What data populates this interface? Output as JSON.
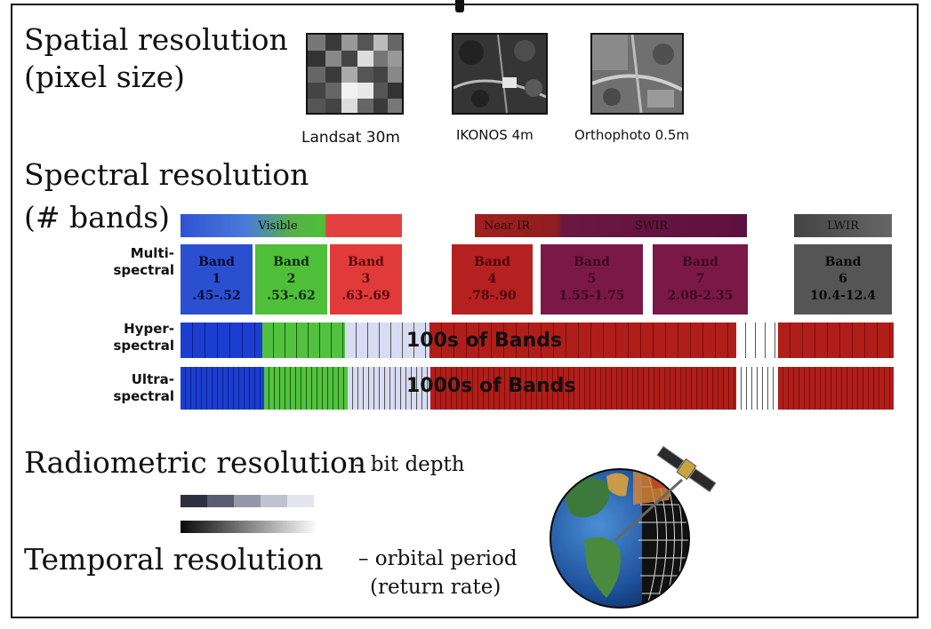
{
  "spatial": {
    "heading1": "Spatial resolution",
    "heading2": "(pixel size)",
    "images": [
      {
        "caption": "Landsat 30m"
      },
      {
        "caption": "IKONOS 4m"
      },
      {
        "caption": "Orthophoto 0.5m"
      }
    ]
  },
  "spectral": {
    "heading1": "Spectral resolution",
    "heading2": "(# bands)",
    "regions": [
      {
        "label": "Visible",
        "color": "#4a7bd8"
      },
      {
        "label": "Near IR",
        "color": "#8e1e1e"
      },
      {
        "label": "SWIR",
        "color": "#6a1840"
      },
      {
        "label": "LWIR",
        "color": "#555555"
      }
    ],
    "multispectral_label": "Multi-\nspectral",
    "bands": [
      {
        "name": "Band",
        "number": "1",
        "range": ".45-.52",
        "color": "#2a50d0"
      },
      {
        "name": "Band",
        "number": "2",
        "range": ".53-.62",
        "color": "#4fbf3a"
      },
      {
        "name": "Band",
        "number": "3",
        "range": ".63-.69",
        "color": "#e03a3a"
      },
      {
        "name": "Band",
        "number": "4",
        "range": ".78-.90",
        "color": "#b52020"
      },
      {
        "name": "Band",
        "number": "5",
        "range": "1.55-1.75",
        "color": "#7a1848"
      },
      {
        "name": "Band",
        "number": "7",
        "range": "2.08-2.35",
        "color": "#7a1848"
      },
      {
        "name": "Band",
        "number": "6",
        "range": "10.4-12.4",
        "color": "#555555"
      }
    ],
    "hyperspectral_label": "Hyper-\nspectral",
    "hyperspectral_text": "100s of Bands",
    "ultraspectral_label": "Ultra-\nspectral",
    "ultraspectral_text": "1000s of Bands"
  },
  "radiometric": {
    "heading": "Radiometric resolution",
    "note": "– bit depth"
  },
  "temporal": {
    "heading": "Temporal resolution",
    "note1": "– orbital period",
    "note2": "(return rate)"
  }
}
